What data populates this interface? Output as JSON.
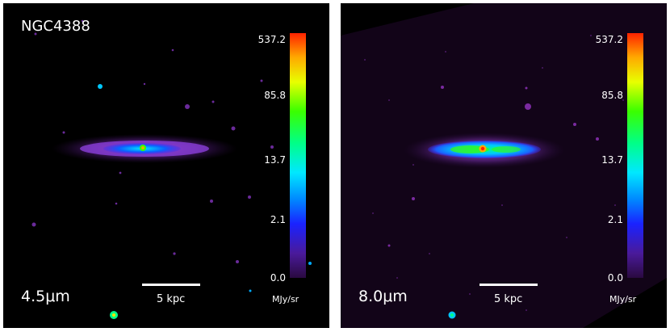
{
  "left_panel": {
    "galaxy": "NGC4388",
    "band": "4.5",
    "band_unit": "μm",
    "scale": "5 kpc",
    "colorbar": {
      "ticks": [
        "537.2",
        "85.8",
        "13.7",
        "2.1",
        "0.0"
      ],
      "unit": "MJy/sr"
    }
  },
  "right_panel": {
    "galaxy": "",
    "band": "8.0",
    "band_unit": "μm",
    "scale": "5 kpc",
    "colorbar": {
      "ticks": [
        "537.2",
        "85.8",
        "13.7",
        "2.1",
        "0.0"
      ],
      "unit": "MJy/sr"
    }
  }
}
